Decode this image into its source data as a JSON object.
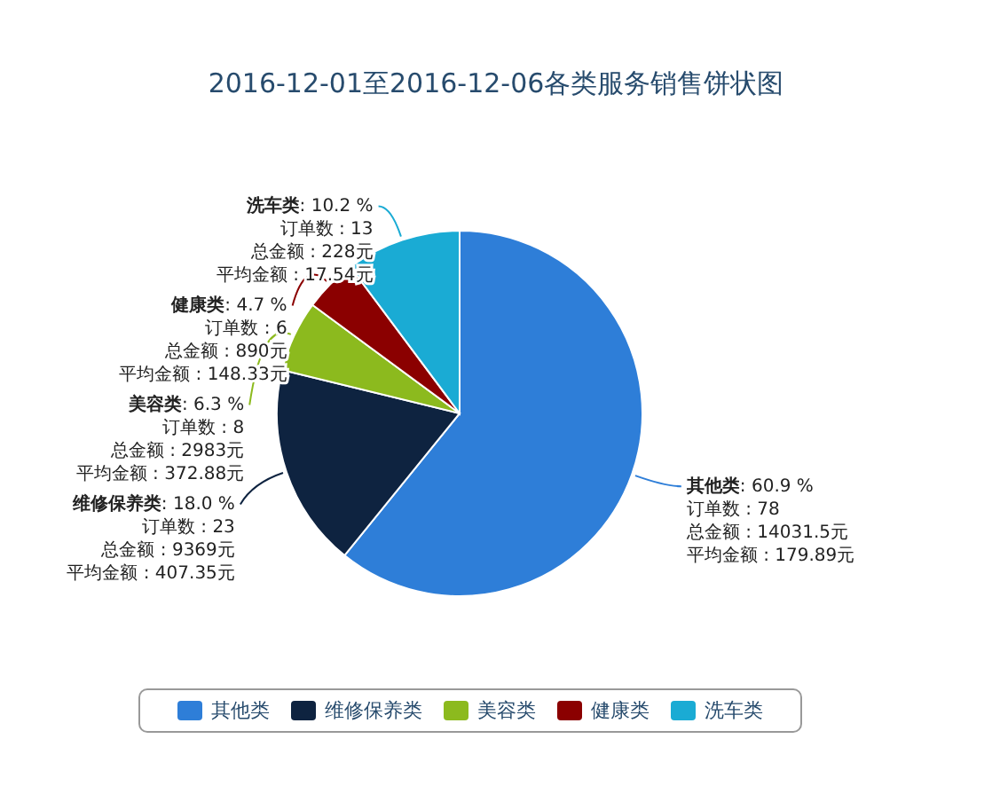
{
  "chart_data": {
    "type": "pie",
    "title": "2016-12-01至2016-12-06各类服务销售饼状图",
    "categories": [
      "其他类",
      "维修保养类",
      "美容类",
      "健康类",
      "洗车类"
    ],
    "values": [
      60.9,
      18.0,
      6.3,
      4.7,
      10.2
    ],
    "colors": [
      "#2e7ed8",
      "#0e2340",
      "#8cba1e",
      "#8b0000",
      "#1aabd4"
    ],
    "value_labels": [
      ": 60.9 %",
      ": 18.0 %",
      ": 6.3 %",
      ": 4.7 %",
      ": 10.2 %"
    ],
    "annotations": [
      {
        "text": "订单数 : 78",
        "x": "其他类"
      },
      {
        "text": "总金额 : 14031.5元",
        "x": "其他类"
      },
      {
        "text": "平均金额 : 179.89元",
        "x": "其他类"
      },
      {
        "text": "订单数 : 23",
        "x": "维修保养类"
      },
      {
        "text": "总金额 : 9369元",
        "x": "维修保养类"
      },
      {
        "text": "平均金额 : 407.35元",
        "x": "维修保养类"
      },
      {
        "text": "订单数 : 8",
        "x": "美容类"
      },
      {
        "text": "总金额 : 2983元",
        "x": "美容类"
      },
      {
        "text": "平均金额 : 372.88元",
        "x": "美容类"
      },
      {
        "text": "订单数 : 6",
        "x": "健康类"
      },
      {
        "text": "总金额 : 890元",
        "x": "健康类"
      },
      {
        "text": "平均金额 : 148.33元",
        "x": "健康类"
      },
      {
        "text": "订单数 : 13",
        "x": "洗车类"
      },
      {
        "text": "总金额 : 228元",
        "x": "洗车类"
      },
      {
        "text": "平均金额 : 17.54元",
        "x": "洗车类"
      }
    ],
    "legend": "bottom"
  }
}
